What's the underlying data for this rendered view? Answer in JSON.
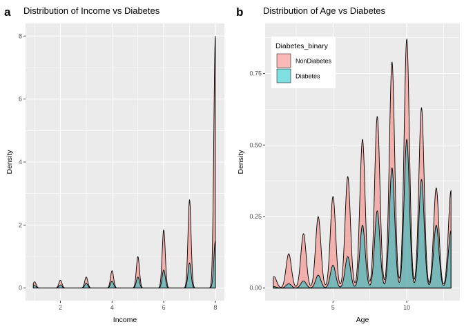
{
  "colors": {
    "NonDiabetes": "#f8766d",
    "Diabetes": "#00bfc4",
    "panel": "#ebebeb",
    "grid": "#ffffff"
  },
  "chart_data": [
    {
      "type": "area",
      "tag": "a",
      "title": "Distribution of Income vs Diabetes",
      "xlabel": "Income",
      "ylabel": "Density",
      "xlim": [
        0.65,
        8.35
      ],
      "ylim": [
        -0.4,
        8.4
      ],
      "xticks": [
        2,
        4,
        6,
        8
      ],
      "xtick_labels": [
        "2",
        "4",
        "6",
        "8"
      ],
      "yticks": [
        0,
        2,
        4,
        6,
        8
      ],
      "ytick_labels": [
        "0",
        "2",
        "4",
        "6",
        "8"
      ],
      "fill_alpha": 0.5,
      "bandwidth": 0.06,
      "series": [
        {
          "name": "NonDiabetes",
          "peaks": [
            [
              1,
              0.2
            ],
            [
              2,
              0.25
            ],
            [
              3,
              0.35
            ],
            [
              4,
              0.55
            ],
            [
              5,
              1.0
            ],
            [
              6,
              1.85
            ],
            [
              7,
              2.8
            ],
            [
              8,
              8.0
            ]
          ]
        },
        {
          "name": "Diabetes",
          "peaks": [
            [
              1,
              0.08
            ],
            [
              2,
              0.1
            ],
            [
              3,
              0.15
            ],
            [
              4,
              0.22
            ],
            [
              5,
              0.35
            ],
            [
              6,
              0.58
            ],
            [
              7,
              0.8
            ],
            [
              8,
              1.5
            ]
          ]
        }
      ]
    },
    {
      "type": "area",
      "tag": "b",
      "title": "Distribution of Age vs Diabetes",
      "xlabel": "Age",
      "ylabel": "Density",
      "xlim": [
        0.4,
        13.6
      ],
      "ylim": [
        -0.044,
        0.925
      ],
      "xticks": [
        5,
        10
      ],
      "xtick_labels": [
        "5",
        "10"
      ],
      "yticks": [
        0,
        0.25,
        0.5,
        0.75
      ],
      "ytick_labels": [
        "0.00",
        "0.25",
        "0.50",
        "0.75"
      ],
      "fill_alpha": 0.5,
      "bandwidth": 0.18,
      "series": [
        {
          "name": "NonDiabetes",
          "peaks": [
            [
              1,
              0.04
            ],
            [
              2,
              0.12
            ],
            [
              3,
              0.19
            ],
            [
              4,
              0.25
            ],
            [
              5,
              0.32
            ],
            [
              6,
              0.39
            ],
            [
              7,
              0.52
            ],
            [
              8,
              0.6
            ],
            [
              9,
              0.79
            ],
            [
              10,
              0.87
            ],
            [
              11,
              0.63
            ],
            [
              12,
              0.35
            ],
            [
              13,
              0.34
            ]
          ]
        },
        {
          "name": "Diabetes",
          "peaks": [
            [
              1,
              0.005
            ],
            [
              2,
              0.015
            ],
            [
              3,
              0.025
            ],
            [
              4,
              0.045
            ],
            [
              5,
              0.08
            ],
            [
              6,
              0.11
            ],
            [
              7,
              0.22
            ],
            [
              8,
              0.27
            ],
            [
              9,
              0.42
            ],
            [
              10,
              0.52
            ],
            [
              11,
              0.38
            ],
            [
              12,
              0.22
            ],
            [
              13,
              0.2
            ]
          ]
        }
      ],
      "legend": {
        "title": "Diabetes_binary",
        "position": "top-left",
        "entries": [
          "NonDiabetes",
          "Diabetes"
        ]
      }
    }
  ]
}
